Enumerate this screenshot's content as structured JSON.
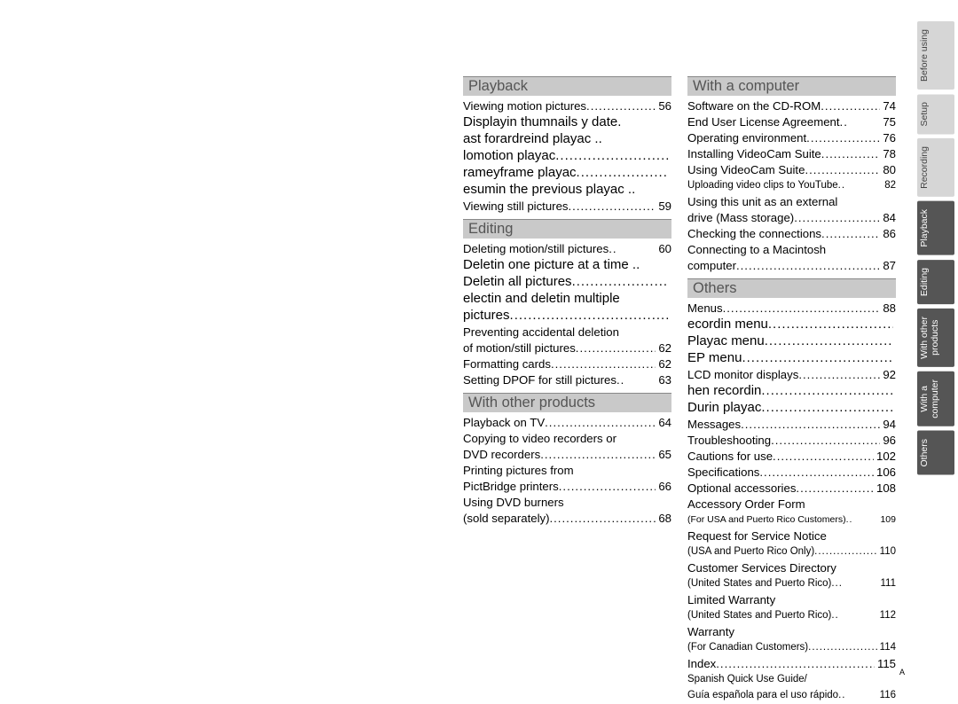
{
  "col1": {
    "sections": [
      {
        "title": "Playback",
        "items": [
          {
            "type": "entry",
            "text": "Viewing motion pictures",
            "page": "56"
          },
          {
            "type": "sub",
            "text": "Displayin thumnails y date."
          },
          {
            "type": "sub",
            "text": "ast forardreind playac .."
          },
          {
            "type": "sub-entry",
            "text": "lomotion playac",
            "page": ""
          },
          {
            "type": "sub-entry",
            "text": "rameyframe playac",
            "page": ""
          },
          {
            "type": "sub",
            "text": "esumin the previous playac .."
          },
          {
            "type": "entry",
            "text": "Viewing still pictures",
            "page": "59"
          }
        ]
      },
      {
        "title": "Editing",
        "items": [
          {
            "type": "entry",
            "text": "Deleting motion/still pictures",
            "dots": "..",
            "page": "60"
          },
          {
            "type": "sub",
            "text": "Deletin one picture at a time .."
          },
          {
            "type": "sub-entry",
            "text": "Deletin all pictures",
            "page": ""
          },
          {
            "type": "sub",
            "text": "electin and deletin multiple"
          },
          {
            "type": "sub-entry",
            "text": "pictures",
            "page": ""
          },
          {
            "type": "cont",
            "text": "Preventing accidental deletion"
          },
          {
            "type": "entry",
            "text": "of motion/still pictures",
            "page": "62"
          },
          {
            "type": "entry",
            "text": "Formatting cards",
            "page": "62"
          },
          {
            "type": "entry",
            "text": "Setting DPOF for still pictures",
            "dots": "   ..",
            "page": "63"
          }
        ]
      },
      {
        "title": "With other products",
        "items": [
          {
            "type": "entry",
            "text": "Playback on TV",
            "page": "64"
          },
          {
            "type": "cont",
            "text": "Copying to video recorders or"
          },
          {
            "type": "entry",
            "text": "DVD recorders",
            "page": "65"
          },
          {
            "type": "cont",
            "text": "Printing pictures from"
          },
          {
            "type": "entry",
            "text": "PictBridge printers",
            "page": "66"
          },
          {
            "type": "cont",
            "text": "Using DVD burners"
          },
          {
            "type": "entry",
            "text": "(sold separately)",
            "page": "68"
          }
        ]
      }
    ]
  },
  "col2": {
    "sections": [
      {
        "title": "With a computer",
        "items": [
          {
            "type": "entry",
            "text": "Software on the CD-ROM",
            "page": "74"
          },
          {
            "type": "entry",
            "text": "End User License Agreement",
            "dots": "..",
            "page": "75"
          },
          {
            "type": "entry",
            "text": "Operating environment",
            "page": "76"
          },
          {
            "type": "entry",
            "text": "Installing VideoCam Suite",
            "page": "78"
          },
          {
            "type": "entry",
            "text": "Using VideoCam Suite",
            "page": "80"
          },
          {
            "type": "entry-small",
            "text": "Uploading video clips to YouTube",
            "dots": "   ..",
            "page": "82"
          },
          {
            "type": "cont",
            "text": "Using this unit as an external"
          },
          {
            "type": "entry",
            "text": "drive (Mass storage)",
            "page": "84"
          },
          {
            "type": "entry",
            "text": "Checking the connections",
            "page": "86"
          },
          {
            "type": "cont",
            "text": "Connecting to a Macintosh"
          },
          {
            "type": "entry",
            "text": "computer",
            "page": "87"
          }
        ]
      },
      {
        "title": "Others",
        "items": [
          {
            "type": "entry",
            "text": "Menus",
            "page": "88"
          },
          {
            "type": "sub-entry",
            "text": "ecordin menu",
            "page": ""
          },
          {
            "type": "sub-entry",
            "text": "Playac menu",
            "page": ""
          },
          {
            "type": "sub-entry",
            "text": "EP menu",
            "page": ""
          },
          {
            "type": "entry",
            "text": "LCD monitor displays",
            "page": "92"
          },
          {
            "type": "sub-entry",
            "text": "hen recordin",
            "page": ""
          },
          {
            "type": "sub-entry",
            "text": "Durin playac",
            "page": ""
          },
          {
            "type": "entry",
            "text": "Messages",
            "page": "94"
          },
          {
            "type": "entry",
            "text": "Troubleshooting ",
            "page": "96"
          },
          {
            "type": "entry",
            "text": "Cautions for use",
            "page": "102"
          },
          {
            "type": "entry",
            "text": "Specifications",
            "page": "106"
          },
          {
            "type": "entry",
            "text": "Optional accessories",
            "page": "108"
          },
          {
            "type": "cont",
            "text": "Accessory Order Form"
          },
          {
            "type": "entry-xsmall",
            "text": "(For USA and Puerto Rico Customers)",
            "dots": "   ..",
            "page": "109"
          },
          {
            "type": "cont",
            "text": "Request for Service Notice"
          },
          {
            "type": "entry-small",
            "text": "(USA and Puerto Rico Only)",
            "page": "110"
          },
          {
            "type": "cont",
            "text": "Customer Services Directory"
          },
          {
            "type": "entry-small",
            "text": "(United States and Puerto Rico)",
            "dots": "   ...",
            "page": "111"
          },
          {
            "type": "cont",
            "text": "Limited Warranty"
          },
          {
            "type": "entry-small",
            "text": "(United States and Puerto Rico)",
            "dots": "   ..",
            "page": "112"
          },
          {
            "type": "cont",
            "text": "Warranty"
          },
          {
            "type": "entry-small",
            "text": "(For Canadian Customers)",
            "page": "114"
          },
          {
            "type": "entry",
            "text": "Index",
            "page": "115"
          },
          {
            "type": "cont-small",
            "text": "Spanish Quick Use Guide/"
          },
          {
            "type": "entry-small",
            "text": "Guía española para el uso rápido",
            "dots": "   ..",
            "page": "116"
          }
        ]
      }
    ]
  },
  "tabs": [
    {
      "label": "Before using",
      "active": false
    },
    {
      "label": "Setup",
      "active": false
    },
    {
      "label": "Recording",
      "active": false
    },
    {
      "label": "Playback",
      "active": true
    },
    {
      "label": "Editing",
      "active": true
    },
    {
      "label": "With other\nproducts",
      "active": true
    },
    {
      "label": "With a\ncomputer",
      "active": true
    },
    {
      "label": "Others",
      "active": true
    }
  ],
  "footer": "A",
  "dotfill": "..............................................................."
}
